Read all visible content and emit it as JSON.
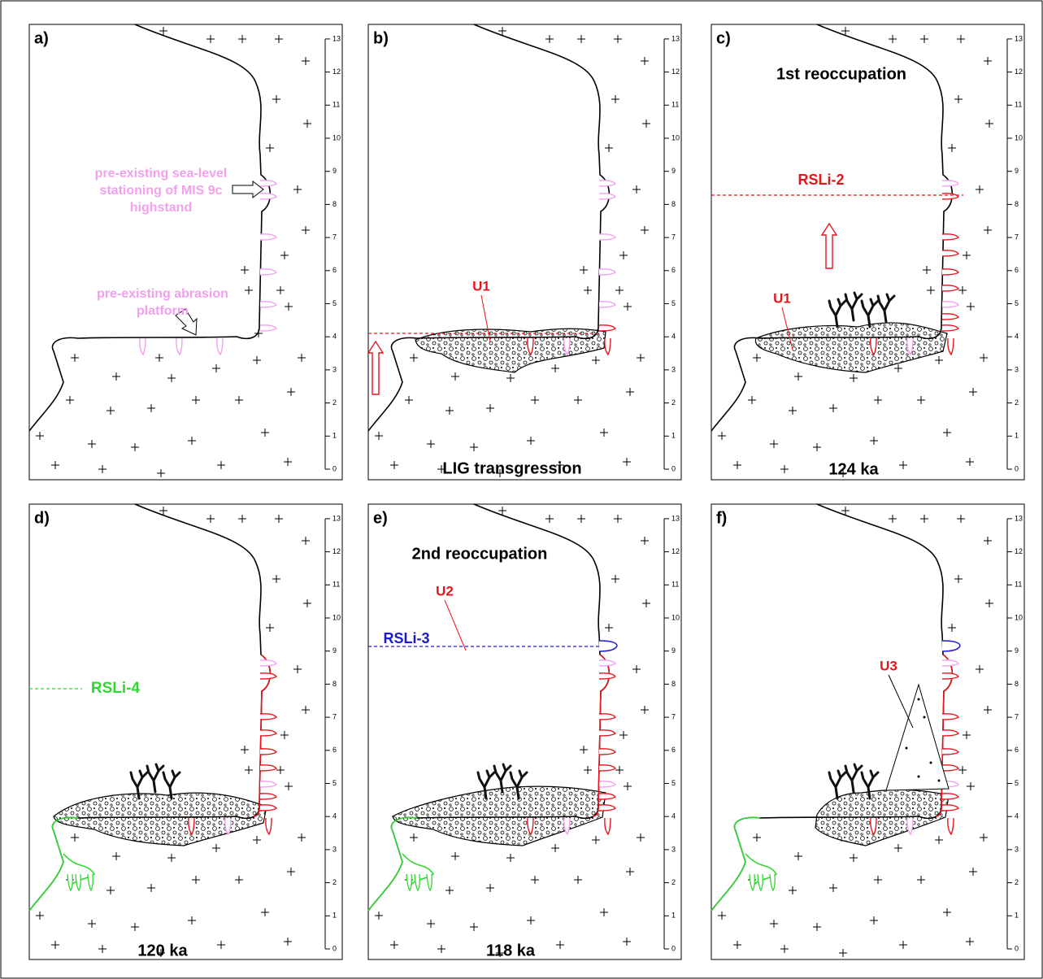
{
  "scale": [
    0,
    1,
    2,
    3,
    4,
    5,
    6,
    7,
    8,
    9,
    10,
    11,
    12,
    13
  ],
  "panels": [
    {
      "label": "a)",
      "annotations": [
        {
          "lines": [
            "pre-existing sea-level",
            "stationing of MIS 9c",
            "highstand"
          ],
          "color": "#f2a0ee"
        },
        {
          "lines": [
            "pre-existing abrasion",
            "platform"
          ],
          "color": "#f2a0ee"
        }
      ]
    },
    {
      "label": "b)",
      "annotations": [
        {
          "lines": [
            "U1"
          ],
          "color": "#e8141c"
        },
        {
          "lines": [
            "LIG transgression"
          ],
          "color": "#000000"
        }
      ]
    },
    {
      "label": "c)",
      "annotations": [
        {
          "lines": [
            "1st reoccupation"
          ],
          "color": "#000000"
        },
        {
          "lines": [
            "RSLi-2"
          ],
          "color": "#e8141c"
        },
        {
          "lines": [
            "U1"
          ],
          "color": "#e8141c"
        },
        {
          "lines": [
            "124 ka"
          ],
          "color": "#000000"
        }
      ]
    },
    {
      "label": "d)",
      "annotations": [
        {
          "lines": [
            "RSLi-4"
          ],
          "color": "#2fd82f"
        },
        {
          "lines": [
            "120 ka"
          ],
          "color": "#000000"
        }
      ]
    },
    {
      "label": "e)",
      "annotations": [
        {
          "lines": [
            "2nd reoccupation"
          ],
          "color": "#000000"
        },
        {
          "lines": [
            "RSLi-3"
          ],
          "color": "#1a1ad0"
        },
        {
          "lines": [
            "U2"
          ],
          "color": "#e8141c"
        },
        {
          "lines": [
            "118 ka"
          ],
          "color": "#000000"
        }
      ]
    },
    {
      "label": "f)",
      "annotations": [
        {
          "lines": [
            "U3"
          ],
          "color": "#e8141c"
        }
      ]
    }
  ]
}
